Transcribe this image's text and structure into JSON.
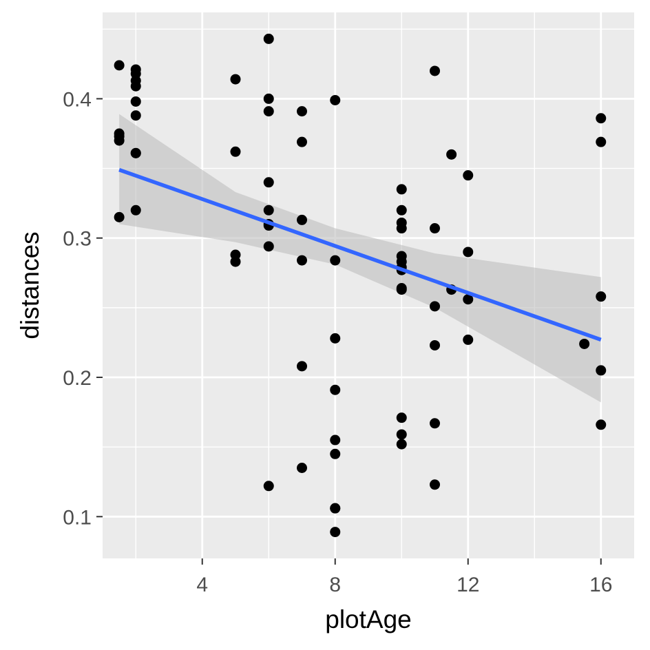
{
  "chart_data": {
    "type": "scatter",
    "title": "",
    "xlabel": "plotAge",
    "ylabel": "distances",
    "xlim": [
      1.0,
      17.0
    ],
    "ylim": [
      0.07,
      0.462
    ],
    "x_ticks": [
      4,
      8,
      12,
      16
    ],
    "x_tick_labels": [
      "4",
      "8",
      "12",
      "16"
    ],
    "y_ticks": [
      0.1,
      0.2,
      0.3,
      0.4
    ],
    "y_tick_labels": [
      "0.1",
      "0.2",
      "0.3",
      "0.4"
    ],
    "grid": true,
    "colors": {
      "panel_background": "#ebebeb",
      "grid_line": "#ffffff",
      "points": "#000000",
      "fit_line": "#3366ff",
      "confidence_band": "#bebebe"
    },
    "points": {
      "x": [
        1.5,
        1.5,
        1.5,
        1.5,
        1.5,
        2,
        2,
        2,
        2,
        2,
        2,
        2,
        2,
        2,
        5,
        5,
        5,
        5,
        6,
        6,
        6,
        6,
        6,
        6,
        6,
        6,
        6,
        7,
        7,
        7,
        7,
        7,
        7,
        8,
        8,
        8,
        8,
        8,
        8,
        8,
        8,
        8,
        10,
        10,
        10,
        10,
        10,
        10,
        10,
        10,
        10,
        10,
        10,
        10,
        10,
        11,
        11,
        11,
        11,
        11,
        11,
        11.5,
        11.5,
        12,
        12,
        12,
        12,
        15.5,
        16,
        16,
        16,
        16,
        16
      ],
      "y": [
        0.424,
        0.375,
        0.373,
        0.37,
        0.315,
        0.421,
        0.418,
        0.413,
        0.409,
        0.398,
        0.388,
        0.361,
        0.361,
        0.32,
        0.414,
        0.362,
        0.288,
        0.283,
        0.443,
        0.4,
        0.391,
        0.34,
        0.32,
        0.31,
        0.309,
        0.294,
        0.122,
        0.391,
        0.369,
        0.313,
        0.284,
        0.208,
        0.135,
        0.399,
        0.284,
        0.228,
        0.191,
        0.155,
        0.145,
        0.106,
        0.106,
        0.089,
        0.335,
        0.32,
        0.311,
        0.307,
        0.287,
        0.283,
        0.279,
        0.277,
        0.264,
        0.263,
        0.171,
        0.159,
        0.152,
        0.42,
        0.307,
        0.251,
        0.223,
        0.167,
        0.123,
        0.36,
        0.263,
        0.345,
        0.29,
        0.256,
        0.227,
        0.224,
        0.386,
        0.369,
        0.258,
        0.205,
        0.166
      ]
    },
    "fit_line": {
      "x": [
        1.5,
        16
      ],
      "y": [
        0.349,
        0.227
      ]
    },
    "confidence_band": {
      "x": [
        1.5,
        5,
        8,
        11,
        16
      ],
      "upper": [
        0.389,
        0.333,
        0.307,
        0.289,
        0.272
      ],
      "lower": [
        0.31,
        0.297,
        0.281,
        0.25,
        0.182
      ]
    }
  }
}
